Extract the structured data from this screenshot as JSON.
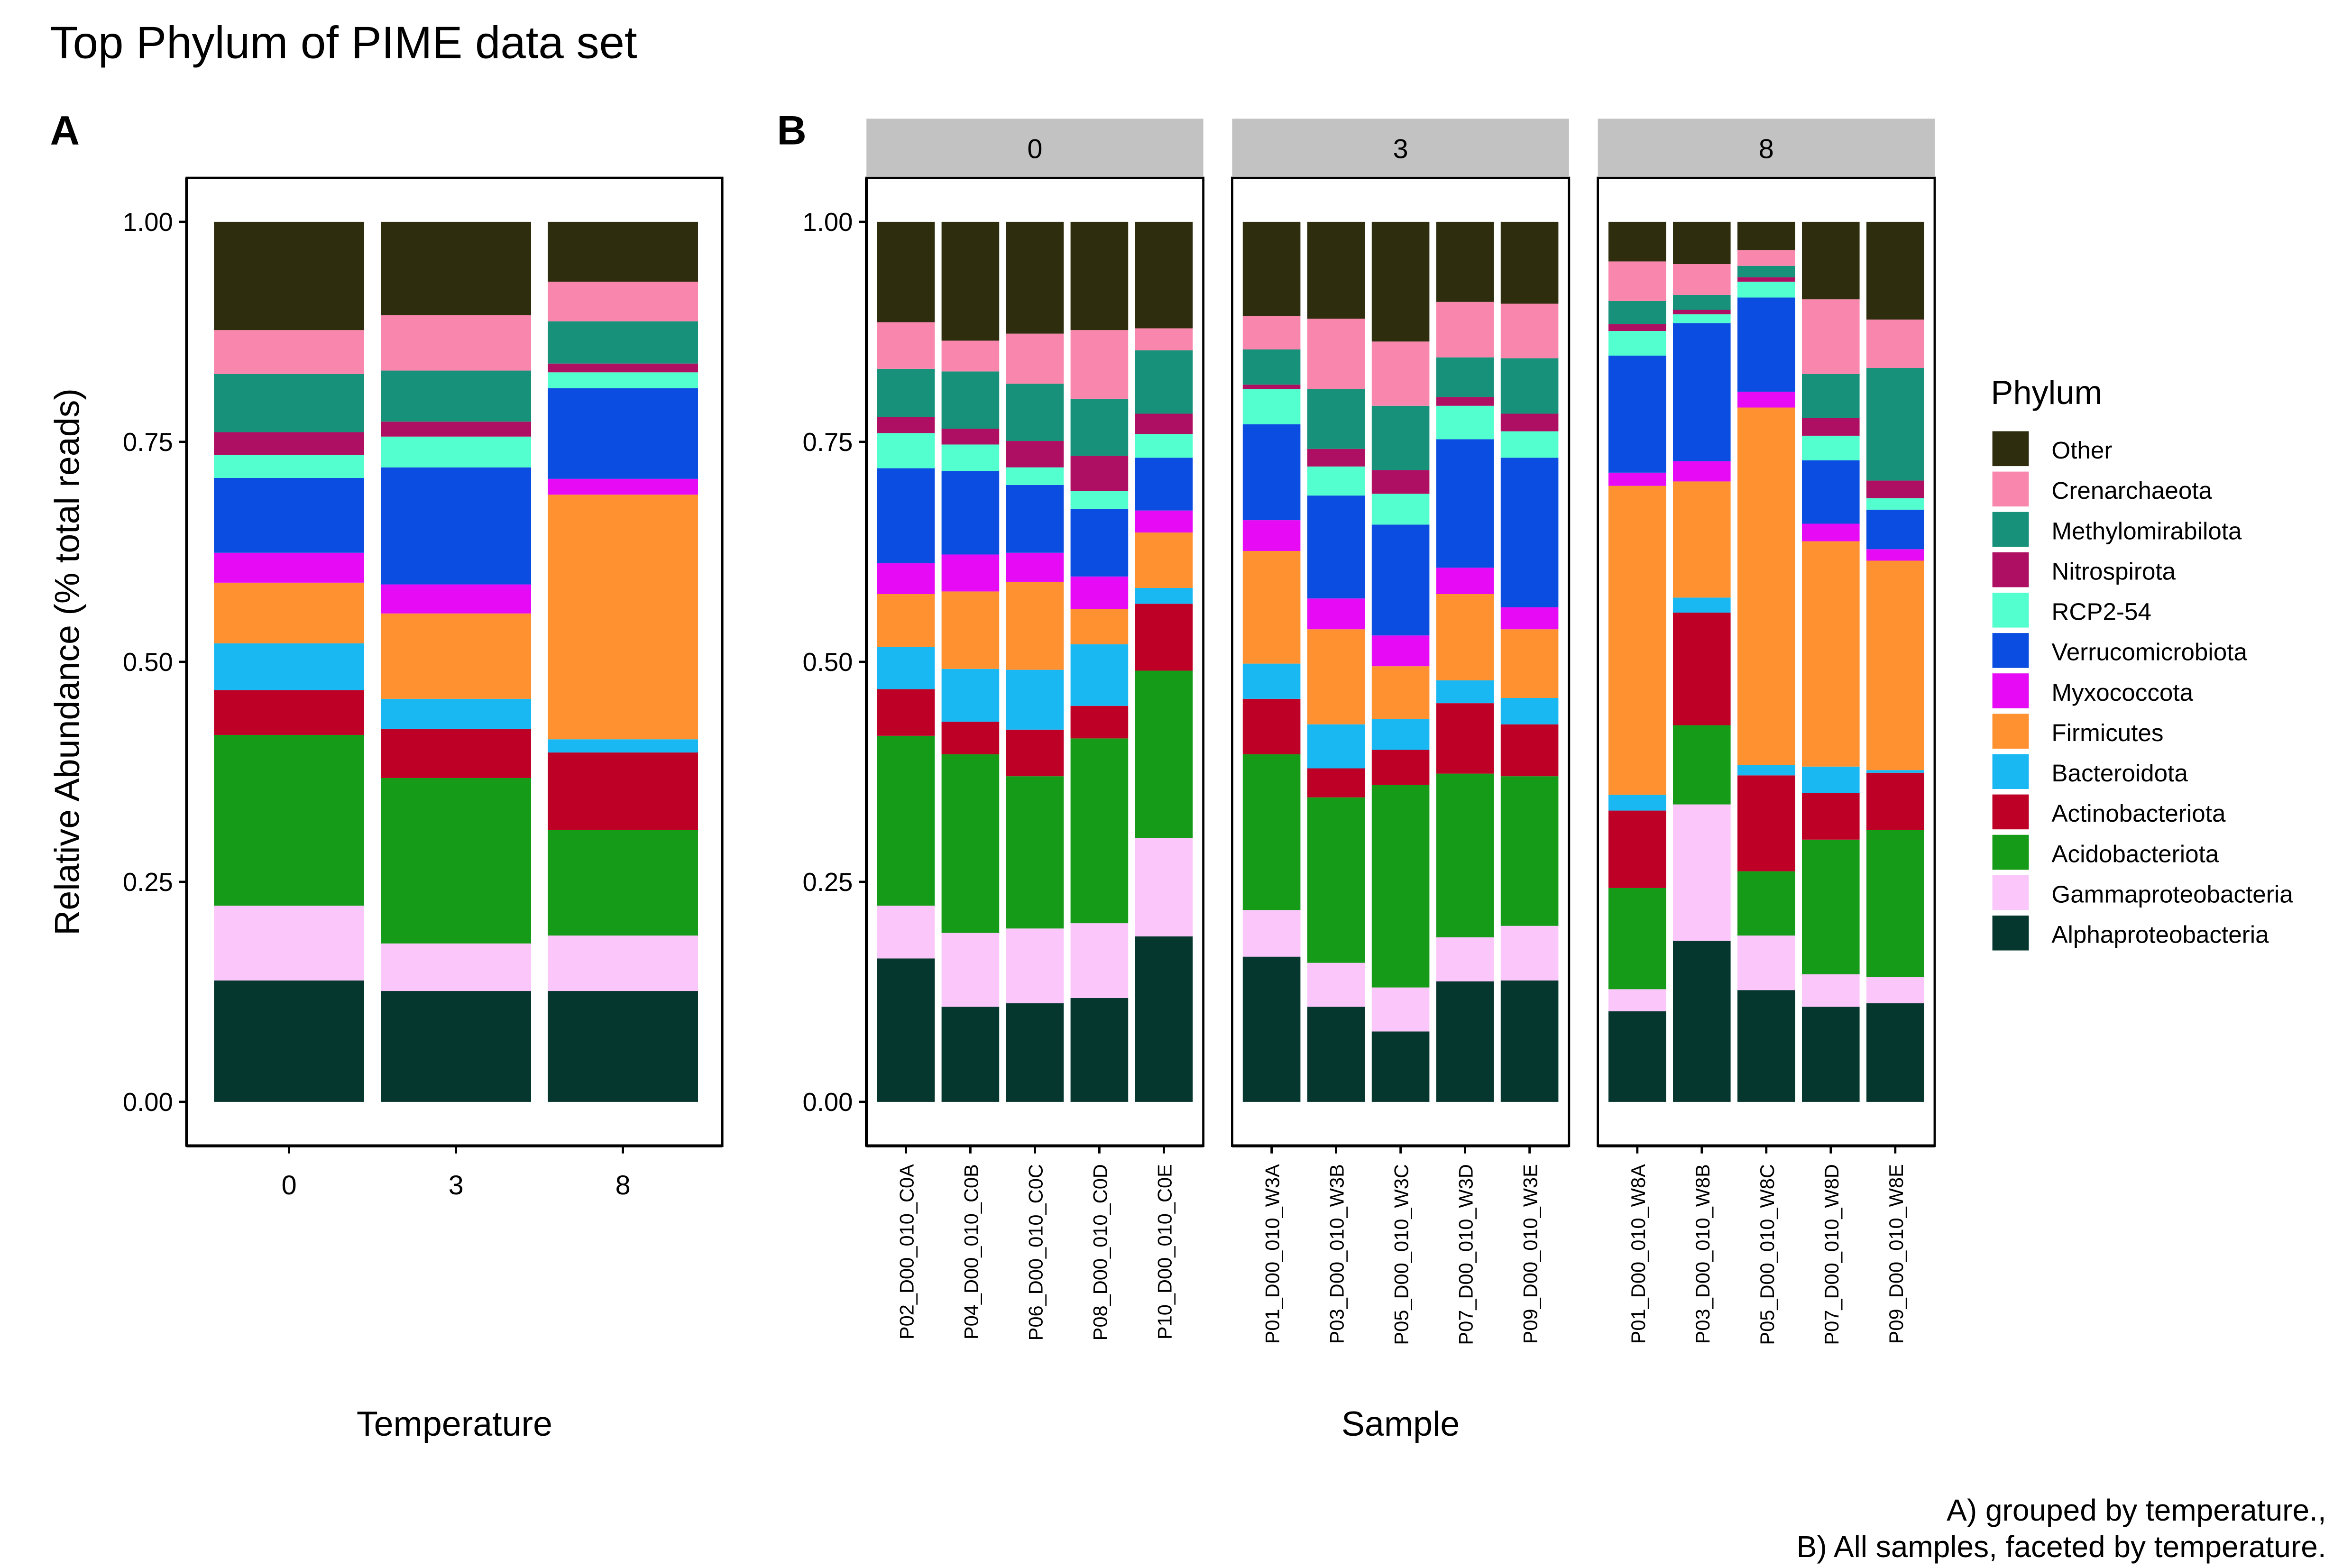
{
  "title": "Top Phylum of PIME data set",
  "caption": [
    "A) grouped by temperature.,",
    "B) All samples, faceted by temperature."
  ],
  "legend": {
    "title": "Phylum",
    "position": "right",
    "items": [
      {
        "name": "Other",
        "color": "#2e2e0e"
      },
      {
        "name": "Crenarchaeota",
        "color": "#f987ad"
      },
      {
        "name": "Methylomirabilota",
        "color": "#17917a"
      },
      {
        "name": "Nitrospirota",
        "color": "#ae0f63"
      },
      {
        "name": "RCP2-54",
        "color": "#54ffcf"
      },
      {
        "name": "Verrucomicrobiota",
        "color": "#0b4de0"
      },
      {
        "name": "Myxococcota",
        "color": "#e70af4"
      },
      {
        "name": "Firmicutes",
        "color": "#ff9130"
      },
      {
        "name": "Bacteroidota",
        "color": "#1ab8f3"
      },
      {
        "name": "Actinobacteriota",
        "color": "#be0026"
      },
      {
        "name": "Acidobacteriota",
        "color": "#159b17"
      },
      {
        "name": "Gammaproteobacteria",
        "color": "#fbc7fb"
      },
      {
        "name": "Alphaproteobacteria",
        "color": "#06372f"
      }
    ]
  },
  "chart_data": [
    {
      "panel": "A",
      "type": "bar",
      "stacked": true,
      "xlabel": "Temperature",
      "ylabel": "Relative Abundance (% total reads)",
      "ylim": [
        0,
        1
      ],
      "yticks": [
        "0.00",
        "0.25",
        "0.50",
        "0.75",
        "1.00"
      ],
      "categories": [
        "0",
        "3",
        "8"
      ],
      "stack_order": [
        "Alphaproteobacteria",
        "Gammaproteobacteria",
        "Acidobacteriota",
        "Actinobacteriota",
        "Bacteroidota",
        "Firmicutes",
        "Myxococcota",
        "Verrucomicrobiota",
        "RCP2-54",
        "Nitrospirota",
        "Methylomirabilota",
        "Crenarchaeota",
        "Other"
      ],
      "bars": [
        [
          0.138,
          0.085,
          0.194,
          0.051,
          0.053,
          0.069,
          0.034,
          0.085,
          0.026,
          0.026,
          0.066,
          0.05,
          0.123
        ],
        [
          0.126,
          0.054,
          0.188,
          0.056,
          0.034,
          0.097,
          0.033,
          0.133,
          0.035,
          0.017,
          0.058,
          0.063,
          0.106
        ],
        [
          0.126,
          0.063,
          0.12,
          0.088,
          0.015,
          0.278,
          0.018,
          0.103,
          0.018,
          0.01,
          0.048,
          0.045,
          0.068
        ]
      ]
    },
    {
      "panel": "B",
      "type": "bar",
      "stacked": true,
      "faceted_by": "Temperature",
      "xlabel": "Sample",
      "ylim": [
        0,
        1
      ],
      "yticks": [
        "0.00",
        "0.25",
        "0.50",
        "0.75",
        "1.00"
      ],
      "stack_order": [
        "Alphaproteobacteria",
        "Gammaproteobacteria",
        "Acidobacteriota",
        "Actinobacteriota",
        "Bacteroidota",
        "Firmicutes",
        "Myxococcota",
        "Verrucomicrobiota",
        "RCP2-54",
        "Nitrospirota",
        "Methylomirabilota",
        "Crenarchaeota",
        "Other"
      ],
      "facets": [
        {
          "label": "0",
          "samples": [
            "P02_D00_010_C0A",
            "P04_D00_010_C0B",
            "P06_D00_010_C0C",
            "P08_D00_010_C0D",
            "P10_D00_010_C0E"
          ],
          "bars": [
            [
              0.163,
              0.06,
              0.193,
              0.053,
              0.048,
              0.06,
              0.035,
              0.108,
              0.04,
              0.018,
              0.055,
              0.053,
              0.114
            ],
            [
              0.108,
              0.084,
              0.203,
              0.037,
              0.06,
              0.088,
              0.042,
              0.095,
              0.03,
              0.018,
              0.065,
              0.035,
              0.135
            ],
            [
              0.112,
              0.085,
              0.173,
              0.053,
              0.068,
              0.1,
              0.033,
              0.077,
              0.02,
              0.03,
              0.065,
              0.057,
              0.127
            ],
            [
              0.118,
              0.085,
              0.21,
              0.037,
              0.07,
              0.04,
              0.037,
              0.077,
              0.02,
              0.04,
              0.065,
              0.078,
              0.123
            ],
            [
              0.188,
              0.112,
              0.19,
              0.076,
              0.018,
              0.063,
              0.025,
              0.06,
              0.027,
              0.023,
              0.072,
              0.025,
              0.121
            ]
          ]
        },
        {
          "label": "3",
          "samples": [
            "P01_D00_010_W3A",
            "P03_D00_010_W3B",
            "P05_D00_010_W3C",
            "P07_D00_010_W3D",
            "P09_D00_010_W3E"
          ],
          "bars": [
            [
              0.165,
              0.053,
              0.177,
              0.063,
              0.04,
              0.128,
              0.035,
              0.109,
              0.04,
              0.005,
              0.04,
              0.038,
              0.107
            ],
            [
              0.108,
              0.05,
              0.188,
              0.033,
              0.05,
              0.108,
              0.035,
              0.117,
              0.033,
              0.02,
              0.068,
              0.08,
              0.11
            ],
            [
              0.08,
              0.05,
              0.23,
              0.04,
              0.035,
              0.06,
              0.035,
              0.126,
              0.035,
              0.027,
              0.073,
              0.073,
              0.136
            ],
            [
              0.137,
              0.05,
              0.186,
              0.08,
              0.026,
              0.098,
              0.03,
              0.146,
              0.038,
              0.01,
              0.045,
              0.063,
              0.091
            ],
            [
              0.138,
              0.062,
              0.17,
              0.059,
              0.03,
              0.078,
              0.025,
              0.17,
              0.03,
              0.02,
              0.063,
              0.062,
              0.093
            ]
          ]
        },
        {
          "label": "8",
          "samples": [
            "P01_D00_010_W8A",
            "P03_D00_010_W8B",
            "P05_D00_010_W8C",
            "P07_D00_010_W8D",
            "P09_D00_010_W8E"
          ],
          "bars": [
            [
              0.103,
              0.025,
              0.115,
              0.088,
              0.018,
              0.351,
              0.015,
              0.133,
              0.028,
              0.008,
              0.026,
              0.045,
              0.045
            ],
            [
              0.183,
              0.155,
              0.09,
              0.128,
              0.017,
              0.132,
              0.023,
              0.157,
              0.01,
              0.005,
              0.017,
              0.035,
              0.048
            ],
            [
              0.127,
              0.062,
              0.073,
              0.109,
              0.012,
              0.406,
              0.018,
              0.107,
              0.018,
              0.005,
              0.013,
              0.018,
              0.032
            ],
            [
              0.108,
              0.037,
              0.153,
              0.053,
              0.03,
              0.256,
              0.02,
              0.072,
              0.028,
              0.02,
              0.05,
              0.085,
              0.088
            ],
            [
              0.112,
              0.03,
              0.167,
              0.065,
              0.003,
              0.238,
              0.013,
              0.045,
              0.013,
              0.02,
              0.128,
              0.055,
              0.111
            ]
          ]
        }
      ]
    }
  ]
}
